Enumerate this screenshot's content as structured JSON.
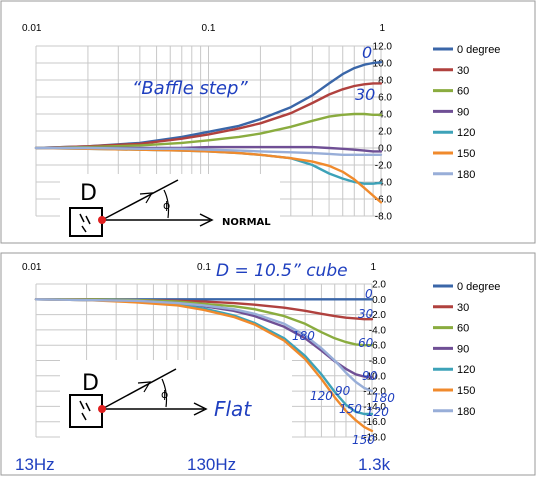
{
  "colors": {
    "0 degree": "#3a66a8",
    "30": "#b0413e",
    "60": "#8aac3f",
    "90": "#6f4f95",
    "120": "#3da2b8",
    "150": "#f08a2c",
    "180": "#98aed8",
    "annotation": "#1f3fbf",
    "grid": "#c8c8c8"
  },
  "chart_data": [
    {
      "type": "line",
      "xscale": "log",
      "xlim": [
        0.01,
        1
      ],
      "ylim": [
        -8,
        12
      ],
      "x_tick_labels": [
        "0.01",
        "0.1",
        "1"
      ],
      "y_tick_labels": [
        "12.0",
        "10.0",
        "8.0",
        "6.0",
        "4.0",
        "2.0",
        "0.0",
        "-2.0",
        "-4.0",
        "-6.0",
        "-8.0"
      ],
      "grid": true,
      "legend_position": "right",
      "annotations": {
        "title": "“Baffle step”",
        "label_0": "0",
        "label_30": "30",
        "diagram_letter": "D",
        "diagram_text": "NORMAL"
      },
      "x": [
        0.01,
        0.02,
        0.04,
        0.07,
        0.1,
        0.15,
        0.2,
        0.3,
        0.4,
        0.5,
        0.6,
        0.7,
        0.8,
        0.9,
        1.0
      ],
      "series": [
        {
          "name": "0 degree",
          "values": [
            0.0,
            0.2,
            0.6,
            1.3,
            1.9,
            2.6,
            3.4,
            4.8,
            6.2,
            7.6,
            8.7,
            9.4,
            9.8,
            10.0,
            10.1
          ]
        },
        {
          "name": "30",
          "values": [
            0.0,
            0.2,
            0.5,
            1.1,
            1.6,
            2.3,
            2.9,
            4.1,
            5.3,
            6.3,
            6.9,
            7.3,
            7.5,
            7.6,
            7.6
          ]
        },
        {
          "name": "60",
          "values": [
            0.0,
            0.1,
            0.3,
            0.6,
            0.9,
            1.3,
            1.7,
            2.5,
            3.2,
            3.7,
            3.9,
            4.0,
            4.0,
            3.9,
            3.9
          ]
        },
        {
          "name": "90",
          "values": [
            0.0,
            0.0,
            0.0,
            0.0,
            0.1,
            0.1,
            0.1,
            0.1,
            0.1,
            0.0,
            -0.1,
            -0.2,
            -0.3,
            -0.4,
            -0.4
          ]
        },
        {
          "name": "120",
          "values": [
            0.0,
            -0.1,
            -0.2,
            -0.3,
            -0.4,
            -0.6,
            -0.8,
            -1.2,
            -2.0,
            -3.0,
            -3.6,
            -4.0,
            -4.2,
            -4.2,
            -4.1
          ]
        },
        {
          "name": "150",
          "values": [
            0.0,
            -0.1,
            -0.2,
            -0.3,
            -0.4,
            -0.6,
            -0.8,
            -1.2,
            -1.6,
            -2.1,
            -2.8,
            -3.7,
            -4.7,
            -5.6,
            -6.4
          ]
        },
        {
          "name": "180",
          "values": [
            0.0,
            0.0,
            -0.1,
            -0.1,
            -0.2,
            -0.3,
            -0.4,
            -0.5,
            -0.6,
            -0.7,
            -0.8,
            -0.8,
            -0.8,
            -0.8,
            -0.8
          ]
        }
      ]
    },
    {
      "type": "line",
      "xscale": "log",
      "xlim": [
        0.01,
        1
      ],
      "ylim": [
        -18,
        2
      ],
      "x_tick_labels": [
        "0.01",
        "0.1",
        "1"
      ],
      "y_tick_labels": [
        "2.0",
        "0.0",
        "-2.0",
        "-4.0",
        "-6.0",
        "-8.0",
        "-10.0",
        "-12.0",
        "-14.0",
        "-16.0",
        "-18.0"
      ],
      "grid": true,
      "legend_position": "right",
      "annotations": {
        "title": "D = 10.5” cube",
        "diagram_letter": "D",
        "diagram_text": "Flat",
        "curve_labels": [
          "0",
          "30",
          "60",
          "90",
          "90",
          "120",
          "180",
          "150",
          "180",
          "120",
          "150"
        ],
        "freq_labels": [
          "13Hz",
          "130Hz",
          "1.3k"
        ]
      },
      "x": [
        0.01,
        0.02,
        0.04,
        0.07,
        0.1,
        0.15,
        0.2,
        0.3,
        0.4,
        0.5,
        0.6,
        0.7,
        0.8,
        0.9,
        1.0
      ],
      "series": [
        {
          "name": "0 degree",
          "values": [
            0.0,
            0.0,
            0.0,
            0.0,
            0.0,
            0.0,
            0.0,
            0.0,
            0.0,
            0.0,
            0.0,
            0.0,
            0.0,
            0.0,
            0.0
          ]
        },
        {
          "name": "30",
          "values": [
            0.0,
            0.0,
            -0.1,
            -0.2,
            -0.3,
            -0.5,
            -0.7,
            -1.1,
            -1.5,
            -1.9,
            -2.2,
            -2.4,
            -2.5,
            -2.6,
            -2.6
          ]
        },
        {
          "name": "60",
          "values": [
            0.0,
            0.0,
            -0.1,
            -0.3,
            -0.6,
            -0.9,
            -1.3,
            -2.2,
            -3.2,
            -4.3,
            -5.1,
            -5.6,
            -5.9,
            -6.0,
            -6.0
          ]
        },
        {
          "name": "90",
          "values": [
            0.0,
            -0.1,
            -0.2,
            -0.5,
            -0.9,
            -1.5,
            -2.2,
            -3.6,
            -5.1,
            -6.7,
            -8.1,
            -9.1,
            -9.8,
            -10.1,
            -10.2
          ]
        },
        {
          "name": "120",
          "values": [
            0.0,
            -0.1,
            -0.3,
            -0.7,
            -1.2,
            -2.1,
            -3.1,
            -5.1,
            -7.4,
            -9.8,
            -12.1,
            -13.8,
            -14.7,
            -15.0,
            -15.0
          ]
        },
        {
          "name": "150",
          "values": [
            0.0,
            -0.1,
            -0.4,
            -0.8,
            -1.4,
            -2.3,
            -3.3,
            -5.4,
            -7.8,
            -10.4,
            -12.8,
            -14.6,
            -15.8,
            -16.7,
            -17.2
          ]
        },
        {
          "name": "180",
          "values": [
            0.0,
            -0.1,
            -0.2,
            -0.5,
            -0.8,
            -1.3,
            -1.9,
            -3.2,
            -4.7,
            -6.4,
            -8.0,
            -9.6,
            -10.8,
            -11.6,
            -12.0
          ]
        }
      ]
    }
  ]
}
